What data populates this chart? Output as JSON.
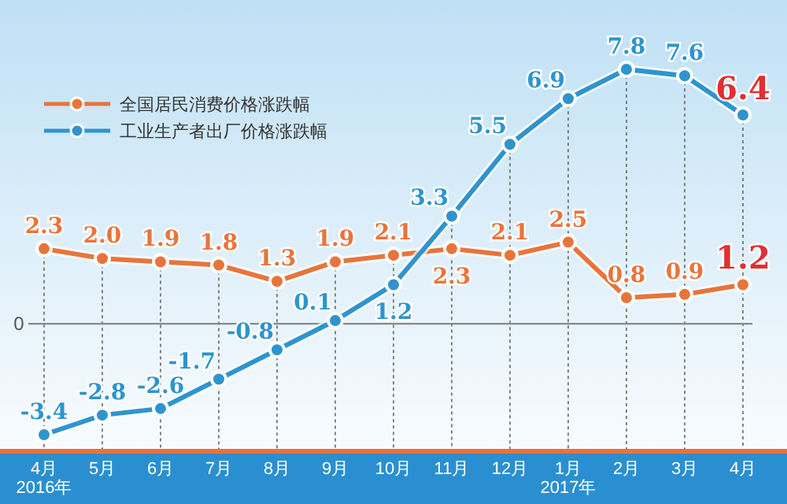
{
  "chart_data": {
    "type": "line",
    "categories": [
      "4月\n2016年",
      "5月",
      "6月",
      "7月",
      "8月",
      "9月",
      "10月",
      "11月",
      "12月",
      "1月\n2017年",
      "2月",
      "3月",
      "4月"
    ],
    "series": [
      {
        "name": "全国居民消费价格涨跌幅",
        "color": "#e8743b",
        "values": [
          2.3,
          2.0,
          1.9,
          1.8,
          1.3,
          1.9,
          2.1,
          2.3,
          2.1,
          2.5,
          0.8,
          0.9,
          1.2
        ],
        "value_labels": [
          "2.3",
          "2.0",
          "1.9",
          "1.8",
          "1.3",
          "1.9",
          "2.1",
          "2.3",
          "2.1",
          "2.5",
          "0.8",
          "0.9",
          "1.2"
        ]
      },
      {
        "name": "工业生产者出厂价格涨跌幅",
        "color": "#2e94cf",
        "values": [
          -3.4,
          -2.8,
          -2.6,
          -1.7,
          -0.8,
          0.1,
          1.2,
          3.3,
          5.5,
          6.9,
          7.8,
          7.6,
          6.4
        ],
        "value_labels": [
          "-3.4",
          "-2.8",
          "-2.6",
          "-1.7",
          "-0.8",
          "0.1",
          "1.2",
          "3.3",
          "5.5",
          "6.9",
          "7.8",
          "7.6",
          "6.4"
        ]
      }
    ],
    "ref_lines": [
      {
        "axis": "y",
        "value": 0,
        "label": "0",
        "color": "#888888"
      }
    ],
    "grid": "x",
    "legend": "top left",
    "marker": "circle",
    "line_style": "solid"
  }
}
